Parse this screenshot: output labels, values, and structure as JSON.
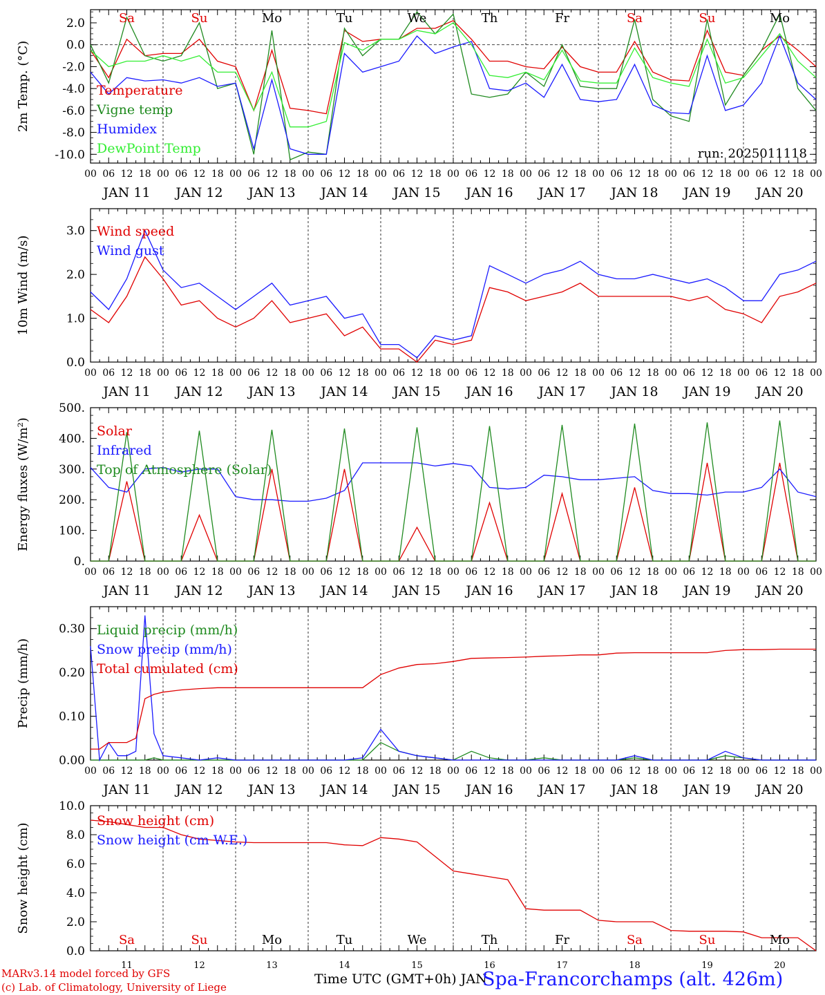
{
  "chart_data": [
    {
      "type": "line",
      "ylabel": "2m Temp. (°C)",
      "ylim": [
        -10.8,
        3.2
      ],
      "yticks": [
        "2.0",
        "0.0",
        "-2.0",
        "-4.0",
        "-6.0",
        "-8.0",
        "-10.0"
      ],
      "ytick_values": [
        2,
        0,
        -2,
        -4,
        -6,
        -8,
        -10
      ],
      "zero_line": true,
      "annotation": "run: 2025011118",
      "weekday_labels": [
        "Sa",
        "Su",
        "Mo",
        "Tu",
        "We",
        "Th",
        "Fr",
        "Sa",
        "Su",
        "Mo"
      ],
      "x_hours": [
        0,
        6,
        12,
        18,
        24,
        30,
        36,
        42,
        48,
        54,
        60,
        66,
        72,
        78,
        84,
        90,
        96,
        102,
        108,
        114,
        120,
        126,
        132,
        138,
        144,
        150,
        156,
        162,
        168,
        174,
        180,
        186,
        192,
        198,
        204,
        210,
        216,
        222,
        228,
        234,
        240
      ],
      "series": [
        {
          "name": "Temperature",
          "color": "#e00000",
          "values": [
            -0.5,
            -3.0,
            0.5,
            -1.0,
            -0.8,
            -0.8,
            0.5,
            -1.5,
            -2.0,
            -6.0,
            -0.5,
            -5.8,
            -6.0,
            -6.3,
            1.3,
            0.3,
            0.5,
            0.5,
            1.5,
            1.5,
            2.2,
            0.5,
            -1.5,
            -1.5,
            -2.0,
            -2.2,
            -0.2,
            -2.0,
            -2.5,
            -2.5,
            0.3,
            -2.5,
            -3.2,
            -3.3,
            1.3,
            -2.5,
            -2.8,
            -0.5,
            0.8,
            -0.5,
            -2.0
          ]
        },
        {
          "name": "Vigne temp",
          "color": "#1f8a1f",
          "values": [
            0.0,
            -3.5,
            2.5,
            -1.0,
            -1.5,
            -1.0,
            2.0,
            -4.0,
            -3.5,
            -10.0,
            1.3,
            -10.5,
            -9.8,
            -10.0,
            1.5,
            -1.0,
            0.5,
            0.5,
            3.0,
            1.0,
            2.8,
            -4.5,
            -4.8,
            -4.5,
            -2.5,
            -3.8,
            0.0,
            -3.8,
            -4.0,
            -4.0,
            2.3,
            -5.0,
            -6.5,
            -7.0,
            2.3,
            -5.5,
            -2.8,
            -0.5,
            2.8,
            -4.0,
            -6.0
          ]
        },
        {
          "name": "Humidex",
          "color": "#1a1aff",
          "values": [
            -2.5,
            -4.5,
            -3.0,
            -3.3,
            -3.2,
            -3.5,
            -3.0,
            -3.8,
            -3.5,
            -9.5,
            -3.2,
            -9.5,
            -10.0,
            -10.0,
            -0.8,
            -2.5,
            -2.0,
            -1.5,
            0.8,
            -0.8,
            -0.2,
            0.3,
            -4.0,
            -4.2,
            -3.5,
            -4.8,
            -1.8,
            -5.0,
            -5.2,
            -5.0,
            -1.8,
            -5.5,
            -6.2,
            -6.3,
            -1.0,
            -6.0,
            -5.5,
            -3.5,
            0.8,
            -3.5,
            -5.0
          ]
        },
        {
          "name": "DewPoint Temp",
          "color": "#33ee33",
          "values": [
            -0.5,
            -2.0,
            -1.5,
            -1.5,
            -1.0,
            -1.5,
            -1.0,
            -2.5,
            -2.5,
            -6.0,
            -2.5,
            -7.5,
            -7.5,
            -7.0,
            0.2,
            -0.5,
            0.5,
            0.5,
            1.3,
            1.0,
            2.0,
            0.0,
            -2.8,
            -3.0,
            -2.5,
            -3.2,
            -0.5,
            -3.3,
            -3.5,
            -3.5,
            -0.3,
            -3.0,
            -3.5,
            -3.8,
            0.5,
            -3.5,
            -3.0,
            -1.0,
            1.0,
            -1.5,
            -3.0
          ]
        }
      ]
    },
    {
      "type": "line",
      "ylabel": "10m Wind (m/s)",
      "ylim": [
        0,
        3.5
      ],
      "yticks": [
        "3.0",
        "2.0",
        "1.0",
        "0.0"
      ],
      "ytick_values": [
        3,
        2,
        1,
        0
      ],
      "x_hours": [
        0,
        6,
        12,
        18,
        24,
        30,
        36,
        42,
        48,
        54,
        60,
        66,
        72,
        78,
        84,
        90,
        96,
        102,
        108,
        114,
        120,
        126,
        132,
        138,
        144,
        150,
        156,
        162,
        168,
        174,
        180,
        186,
        192,
        198,
        204,
        210,
        216,
        222,
        228,
        234,
        240
      ],
      "series": [
        {
          "name": "Wind speed",
          "color": "#e00000",
          "values": [
            1.2,
            0.9,
            1.5,
            2.4,
            1.9,
            1.3,
            1.4,
            1.0,
            0.8,
            1.0,
            1.4,
            0.9,
            1.0,
            1.1,
            0.6,
            0.8,
            0.3,
            0.3,
            0.0,
            0.5,
            0.4,
            0.5,
            1.7,
            1.6,
            1.4,
            1.5,
            1.6,
            1.8,
            1.5,
            1.5,
            1.5,
            1.5,
            1.5,
            1.4,
            1.5,
            1.2,
            1.1,
            0.9,
            1.5,
            1.6,
            1.8
          ]
        },
        {
          "name": "Wind gust",
          "color": "#1a1aff",
          "values": [
            1.6,
            1.2,
            1.9,
            3.0,
            2.1,
            1.7,
            1.8,
            1.5,
            1.2,
            1.5,
            1.8,
            1.3,
            1.4,
            1.5,
            1.0,
            1.1,
            0.4,
            0.4,
            0.1,
            0.6,
            0.5,
            0.6,
            2.2,
            2.0,
            1.8,
            2.0,
            2.1,
            2.3,
            2.0,
            1.9,
            1.9,
            2.0,
            1.9,
            1.8,
            1.9,
            1.7,
            1.4,
            1.4,
            2.0,
            2.1,
            2.3
          ]
        }
      ]
    },
    {
      "type": "line",
      "ylabel": "Energy fluxes (W/m²)",
      "ylim": [
        0,
        500
      ],
      "yticks": [
        "500.",
        "400.",
        "300.",
        "200.",
        "100.",
        "0."
      ],
      "ytick_values": [
        500,
        400,
        300,
        200,
        100,
        0
      ],
      "x_hours": [
        0,
        6,
        12,
        18,
        24,
        30,
        36,
        42,
        48,
        54,
        60,
        66,
        72,
        78,
        84,
        90,
        96,
        102,
        108,
        114,
        120,
        126,
        132,
        138,
        144,
        150,
        156,
        162,
        168,
        174,
        180,
        186,
        192,
        198,
        204,
        210,
        216,
        222,
        228,
        234,
        240
      ],
      "series": [
        {
          "name": "Solar",
          "color": "#e00000",
          "values": [
            0,
            0,
            260,
            0,
            0,
            0,
            150,
            0,
            0,
            0,
            300,
            0,
            0,
            0,
            300,
            0,
            0,
            0,
            110,
            0,
            0,
            0,
            190,
            0,
            0,
            0,
            220,
            0,
            0,
            0,
            240,
            0,
            0,
            0,
            320,
            0,
            0,
            0,
            320,
            0,
            0
          ]
        },
        {
          "name": "Infrared",
          "color": "#1a1aff",
          "values": [
            305,
            240,
            225,
            300,
            305,
            290,
            300,
            300,
            210,
            200,
            200,
            195,
            195,
            205,
            230,
            320,
            320,
            320,
            320,
            310,
            318,
            310,
            240,
            235,
            240,
            280,
            275,
            265,
            265,
            270,
            275,
            230,
            220,
            220,
            215,
            225,
            225,
            240,
            300,
            225,
            210
          ]
        },
        {
          "name": "Top of Atmosphere (Solar)",
          "color": "#1f8a1f",
          "values": [
            0,
            0,
            420,
            0,
            0,
            0,
            425,
            0,
            0,
            0,
            428,
            0,
            0,
            0,
            432,
            0,
            0,
            0,
            436,
            0,
            0,
            0,
            440,
            0,
            0,
            0,
            444,
            0,
            0,
            0,
            448,
            0,
            0,
            0,
            452,
            0,
            0,
            0,
            458,
            0,
            0
          ]
        }
      ]
    },
    {
      "type": "line",
      "ylabel": "Precip (mm/h)",
      "ylim": [
        0,
        0.35
      ],
      "yticks": [
        "0.30",
        "0.20",
        "0.10",
        "0.00"
      ],
      "ytick_values": [
        0.3,
        0.2,
        0.1,
        0
      ],
      "x_hours": [
        0,
        3,
        6,
        9,
        12,
        15,
        18,
        21,
        24,
        30,
        36,
        42,
        48,
        54,
        60,
        66,
        72,
        78,
        84,
        90,
        96,
        102,
        108,
        114,
        120,
        126,
        132,
        138,
        144,
        150,
        156,
        162,
        168,
        174,
        180,
        186,
        192,
        198,
        204,
        210,
        216,
        222,
        228,
        234,
        240
      ],
      "series": [
        {
          "name": "Liquid precip (mm/h)",
          "color": "#1f8a1f",
          "values": [
            0,
            0,
            0,
            0,
            0,
            0,
            0,
            0.005,
            0,
            0,
            0,
            0,
            0,
            0,
            0,
            0,
            0,
            0,
            0,
            0,
            0.04,
            0.02,
            0.01,
            0.005,
            0,
            0.02,
            0.005,
            0,
            0,
            0.005,
            0,
            0,
            0,
            0,
            0.005,
            0,
            0,
            0,
            0,
            0.01,
            0.005,
            0,
            0,
            0,
            0
          ]
        },
        {
          "name": "Snow precip (mm/h)",
          "color": "#1a1aff",
          "values": [
            0.26,
            0,
            0.04,
            0.01,
            0.01,
            0.02,
            0.33,
            0.06,
            0.01,
            0.005,
            0,
            0.005,
            0,
            0,
            0,
            0,
            0,
            0,
            0,
            0.005,
            0.07,
            0.02,
            0.01,
            0.005,
            0,
            0,
            0,
            0,
            0,
            0,
            0,
            0,
            0,
            0,
            0.01,
            0,
            0,
            0,
            0,
            0.02,
            0.005,
            0,
            0,
            0,
            0
          ]
        },
        {
          "name": "Total cumulated (cm)",
          "color": "#e00000",
          "values": [
            0.025,
            0.025,
            0.04,
            0.04,
            0.04,
            0.05,
            0.14,
            0.15,
            0.155,
            0.16,
            0.163,
            0.165,
            0.165,
            0.165,
            0.165,
            0.165,
            0.165,
            0.165,
            0.165,
            0.165,
            0.195,
            0.21,
            0.218,
            0.22,
            0.225,
            0.232,
            0.233,
            0.234,
            0.235,
            0.237,
            0.238,
            0.24,
            0.24,
            0.244,
            0.245,
            0.245,
            0.245,
            0.245,
            0.245,
            0.25,
            0.252,
            0.252,
            0.253,
            0.253,
            0.253
          ]
        }
      ]
    },
    {
      "type": "line",
      "ylabel": "Snow height (cm)",
      "ylim": [
        0,
        10
      ],
      "yticks": [
        "10.0",
        "8.0",
        "6.0",
        "4.0",
        "2.0",
        "0.0"
      ],
      "ytick_values": [
        10,
        8,
        6,
        4,
        2,
        0
      ],
      "weekday_labels": [
        "Sa",
        "Su",
        "Mo",
        "Tu",
        "We",
        "Th",
        "Fr",
        "Sa",
        "Su",
        "Mo"
      ],
      "day_numbers": [
        "11",
        "12",
        "13",
        "14",
        "15",
        "16",
        "17",
        "18",
        "19",
        "20"
      ],
      "x_hours": [
        0,
        6,
        12,
        18,
        24,
        30,
        36,
        42,
        48,
        54,
        60,
        66,
        72,
        78,
        84,
        90,
        96,
        102,
        108,
        114,
        120,
        126,
        132,
        138,
        144,
        150,
        156,
        162,
        168,
        174,
        180,
        186,
        192,
        198,
        204,
        210,
        216,
        222,
        228,
        234,
        240
      ],
      "series": [
        {
          "name": "Snow height (cm)",
          "color": "#e00000",
          "values": [
            9.0,
            8.9,
            8.7,
            8.5,
            8.5,
            8.0,
            7.7,
            7.6,
            7.5,
            7.45,
            7.45,
            7.45,
            7.45,
            7.45,
            7.3,
            7.25,
            7.8,
            7.7,
            7.5,
            6.5,
            5.5,
            5.3,
            5.1,
            4.9,
            2.9,
            2.8,
            2.8,
            2.8,
            2.1,
            2.0,
            2.0,
            2.0,
            1.4,
            1.35,
            1.35,
            1.35,
            1.3,
            0.9,
            0.9,
            0.9,
            0.0
          ]
        },
        {
          "name": "Snow height (cm W.E.)",
          "color": "#1a1aff",
          "values": []
        }
      ]
    }
  ],
  "x_axis": {
    "hour_ticks": [
      "00",
      "06",
      "12",
      "18"
    ],
    "day_labels": [
      "JAN 11",
      "JAN 12",
      "JAN 13",
      "JAN 14",
      "JAN 15",
      "JAN 16",
      "JAN 17",
      "JAN 18",
      "JAN 19",
      "JAN 20"
    ],
    "title": "Time UTC (GMT+0h) JAN"
  },
  "weekend_color": "#e00000",
  "footer": {
    "credit_line1": "MARv3.14 model forced by GFS",
    "credit_line2": "(c) Lab. of Climatology, University of Liege",
    "station": "Spa-Francorchamps (alt. 426m)"
  }
}
